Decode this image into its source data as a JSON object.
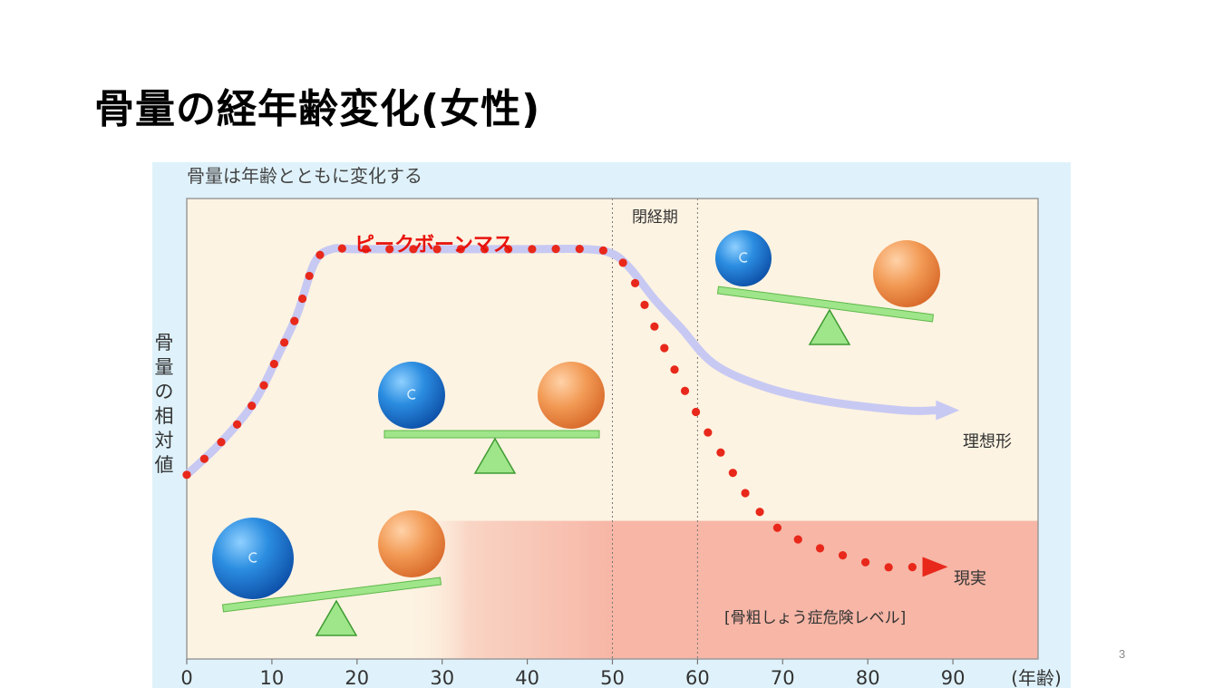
{
  "slide": {
    "title": "骨量の経年齢変化(女性)",
    "page_number": "3"
  },
  "chart_data": {
    "type": "line",
    "title": "骨量は年齢とともに変化する",
    "xlabel": "(年齢)",
    "ylabel": "骨量の相対値",
    "x_ticks": [
      0,
      10,
      20,
      30,
      40,
      50,
      60,
      70,
      80,
      90
    ],
    "xlim": [
      0,
      100
    ],
    "ylim": [
      0,
      100
    ],
    "y_ticks_shown": false,
    "annotations": {
      "peak": "ピークボーンマス",
      "menopause": "閉経期",
      "ideal": "理想形",
      "reality": "現実",
      "danger_zone": "[骨粗しょう症危険レベル]"
    },
    "menopause_range": [
      50,
      60
    ],
    "danger_level": 30,
    "series": [
      {
        "name": "理想形",
        "style": "light-purple arrow",
        "points": [
          [
            0,
            40
          ],
          [
            4,
            47
          ],
          [
            8,
            56
          ],
          [
            11,
            67
          ],
          [
            13,
            75
          ],
          [
            15,
            86
          ],
          [
            17,
            89
          ],
          [
            20,
            89
          ],
          [
            30,
            89
          ],
          [
            40,
            89
          ],
          [
            47,
            89
          ],
          [
            50,
            88
          ],
          [
            52,
            85
          ],
          [
            55,
            78
          ],
          [
            58,
            72
          ],
          [
            62,
            64
          ],
          [
            68,
            59
          ],
          [
            75,
            56
          ],
          [
            84,
            54
          ],
          [
            88,
            54
          ]
        ]
      },
      {
        "name": "現実",
        "style": "red dotted arrow",
        "points": [
          [
            0,
            40
          ],
          [
            4,
            47
          ],
          [
            8,
            56
          ],
          [
            11,
            67
          ],
          [
            13,
            75
          ],
          [
            15,
            86
          ],
          [
            17,
            89
          ],
          [
            20,
            89
          ],
          [
            30,
            89
          ],
          [
            40,
            89
          ],
          [
            47,
            89
          ],
          [
            50,
            88
          ],
          [
            52,
            84
          ],
          [
            54,
            76
          ],
          [
            57,
            64
          ],
          [
            60,
            53
          ],
          [
            63,
            44
          ],
          [
            66,
            35
          ],
          [
            69,
            29
          ],
          [
            73,
            25
          ],
          [
            78,
            22
          ],
          [
            82,
            20
          ],
          [
            86,
            20
          ]
        ]
      }
    ],
    "colors": {
      "panel_bg": "#fdf3e2",
      "outer_bg": "#dff2fb",
      "danger_bg": "#f7b6a6",
      "reality_dots": "#e8281a",
      "ideal_line": "#c7c9f3",
      "peak_label": "#e8120c",
      "seesaw": "#9fe58a",
      "blue_ball": "#1f7fd8",
      "orange_ball": "#f0944d"
    },
    "seesaws": [
      {
        "position": "youth",
        "tilt": "blue-heavy"
      },
      {
        "position": "peak",
        "tilt": "balanced"
      },
      {
        "position": "post-menopause",
        "tilt": "orange-heavy"
      }
    ]
  }
}
